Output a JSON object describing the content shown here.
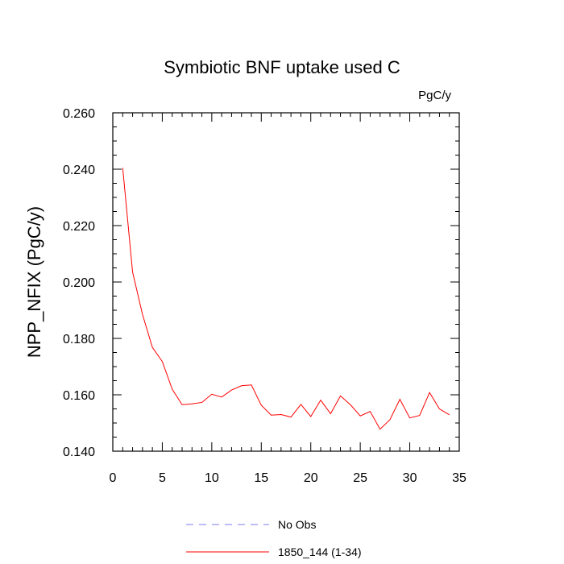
{
  "chart_data": {
    "type": "line",
    "title": "Symbiotic BNF uptake used C",
    "units_label": "PgC/y",
    "ylabel": "NPP_NFIX  (PgC/y)",
    "xlabel": "",
    "xlim": [
      0,
      35
    ],
    "ylim": [
      0.14,
      0.26
    ],
    "x_ticks": [
      0,
      5,
      10,
      15,
      20,
      25,
      30,
      35
    ],
    "y_ticks": [
      0.14,
      0.16,
      0.18,
      0.2,
      0.22,
      0.24,
      0.26
    ],
    "y_tick_labels": [
      "0.140",
      "0.160",
      "0.180",
      "0.200",
      "0.220",
      "0.240",
      "0.260"
    ],
    "grid": false,
    "legend_position": "bottom",
    "series": [
      {
        "name": "No Obs",
        "color": "#7b7bf0",
        "dash": "dashed",
        "x": [],
        "values": []
      },
      {
        "name": "1850_144 (1-34)",
        "color": "#ff0000",
        "dash": "solid",
        "x": [
          1,
          2,
          3,
          4,
          5,
          6,
          7,
          8,
          9,
          10,
          11,
          12,
          13,
          14,
          15,
          16,
          17,
          18,
          19,
          20,
          21,
          22,
          23,
          24,
          25,
          26,
          27,
          28,
          29,
          30,
          31,
          32,
          33,
          34
        ],
        "values": [
          0.2405,
          0.2035,
          0.1885,
          0.1768,
          0.1718,
          0.162,
          0.1565,
          0.1568,
          0.1573,
          0.1602,
          0.1592,
          0.1617,
          0.1632,
          0.1635,
          0.1563,
          0.1528,
          0.153,
          0.1521,
          0.1566,
          0.1523,
          0.1581,
          0.1533,
          0.1596,
          0.1565,
          0.1525,
          0.1541,
          0.1478,
          0.1512,
          0.1584,
          0.1518,
          0.1527,
          0.1608,
          0.155,
          0.1529
        ]
      }
    ]
  }
}
